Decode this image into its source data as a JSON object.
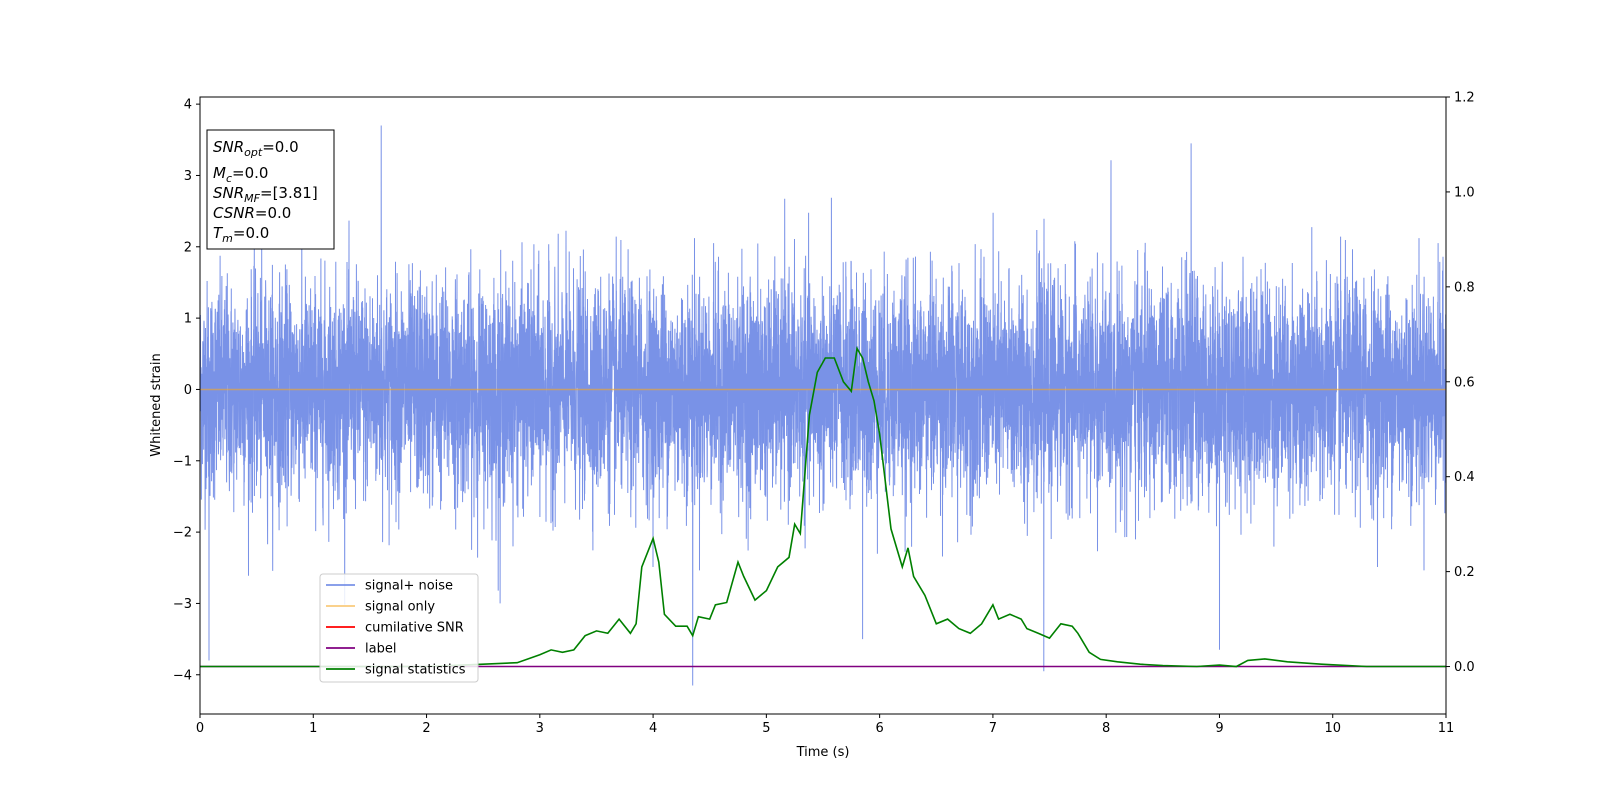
{
  "chart_data": {
    "type": "line",
    "xlabel": "Time (s)",
    "ylabel": "Whitened strain",
    "xlim": [
      0,
      11
    ],
    "ylim": [
      -4.55,
      4.1
    ],
    "y2lim": [
      -0.1,
      1.2
    ],
    "x_ticks": [
      0,
      1,
      2,
      3,
      4,
      5,
      6,
      7,
      8,
      9,
      10,
      11
    ],
    "y_ticks": [
      4,
      3,
      2,
      1,
      0,
      -1,
      -2,
      -3,
      -4
    ],
    "y_tick_labels": [
      "4",
      "3",
      "2",
      "1",
      "0",
      "−1",
      "−2",
      "−3",
      "−4"
    ],
    "y2_ticks": [
      1.2,
      1.0,
      0.8,
      0.6,
      0.4,
      0.2,
      0.0
    ],
    "y2_tick_labels": [
      "1.2",
      "1.0",
      "0.8",
      "0.6",
      "0.4",
      "0.2",
      "0.0"
    ],
    "grid": false,
    "legend_position": "lower-left",
    "colors": {
      "noise": "#6a86e4",
      "signal_only": "#f5a623",
      "cumulative_snr": "#ff0000",
      "label": "#800080",
      "signal_statistics": "#008000"
    },
    "series": [
      {
        "name": "signal+ noise",
        "axis": "left",
        "style": "dense-noise",
        "approx_std": 0.75,
        "approx_range": [
          -4.2,
          3.7
        ],
        "notable_spikes": [
          [
            1.6,
            3.7
          ],
          [
            0.08,
            -3.8
          ],
          [
            4.35,
            -4.15
          ],
          [
            7.45,
            -3.95
          ],
          [
            9.0,
            -3.65
          ],
          [
            5.85,
            -3.5
          ],
          [
            8.75,
            3.45
          ],
          [
            2.65,
            -3.0
          ]
        ]
      },
      {
        "name": "signal only",
        "axis": "left",
        "x": [
          0,
          11
        ],
        "y": [
          0,
          0
        ]
      },
      {
        "name": "cumilative SNR",
        "axis": "left",
        "x": [],
        "y": []
      },
      {
        "name": "label",
        "axis": "right",
        "x": [
          0,
          11
        ],
        "y": [
          0,
          0
        ]
      },
      {
        "name": "signal statistics",
        "axis": "right",
        "x": [
          0,
          0.5,
          1.0,
          1.5,
          2.0,
          2.5,
          2.8,
          3.0,
          3.1,
          3.2,
          3.3,
          3.4,
          3.5,
          3.6,
          3.7,
          3.8,
          3.85,
          3.9,
          4.0,
          4.05,
          4.1,
          4.2,
          4.3,
          4.35,
          4.4,
          4.5,
          4.55,
          4.65,
          4.75,
          4.8,
          4.9,
          5.0,
          5.1,
          5.2,
          5.25,
          5.3,
          5.38,
          5.45,
          5.52,
          5.6,
          5.68,
          5.75,
          5.8,
          5.85,
          5.9,
          5.95,
          6.0,
          6.1,
          6.2,
          6.25,
          6.3,
          6.4,
          6.5,
          6.6,
          6.7,
          6.8,
          6.9,
          7.0,
          7.05,
          7.15,
          7.25,
          7.3,
          7.4,
          7.5,
          7.6,
          7.7,
          7.75,
          7.85,
          7.95,
          8.1,
          8.3,
          8.5,
          8.8,
          9.0,
          9.15,
          9.25,
          9.4,
          9.6,
          9.9,
          10.3,
          10.8,
          11.0
        ],
        "y": [
          0.0,
          0.0,
          0.0,
          0.0,
          0.0,
          0.005,
          0.008,
          0.025,
          0.035,
          0.03,
          0.035,
          0.065,
          0.075,
          0.07,
          0.1,
          0.07,
          0.09,
          0.21,
          0.27,
          0.22,
          0.11,
          0.085,
          0.085,
          0.065,
          0.105,
          0.1,
          0.13,
          0.135,
          0.22,
          0.19,
          0.14,
          0.16,
          0.21,
          0.23,
          0.3,
          0.28,
          0.53,
          0.62,
          0.65,
          0.65,
          0.6,
          0.58,
          0.67,
          0.65,
          0.6,
          0.56,
          0.49,
          0.29,
          0.21,
          0.25,
          0.19,
          0.15,
          0.09,
          0.1,
          0.08,
          0.07,
          0.09,
          0.13,
          0.1,
          0.11,
          0.1,
          0.08,
          0.07,
          0.06,
          0.09,
          0.085,
          0.07,
          0.03,
          0.015,
          0.01,
          0.005,
          0.002,
          0.0,
          0.003,
          0.0,
          0.013,
          0.016,
          0.01,
          0.005,
          0.0,
          0.0,
          0.0
        ]
      }
    ],
    "legend_entries": [
      "signal+ noise",
      "signal only",
      "cumilative SNR",
      "label",
      "signal statistics"
    ]
  },
  "info_box": {
    "snr_opt": {
      "main": "SNR",
      "sub": "opt",
      "value": "=0.0"
    },
    "mc": {
      "main": "M",
      "sub": "c",
      "value": "=0.0"
    },
    "snr_mf": {
      "main": "SNR",
      "sub": "MF",
      "value": "=[3.81]"
    },
    "csnr": {
      "main": "CSNR",
      "value": "=0.0"
    },
    "tm": {
      "main": "T",
      "sub": "m",
      "value": "=0.0"
    }
  }
}
